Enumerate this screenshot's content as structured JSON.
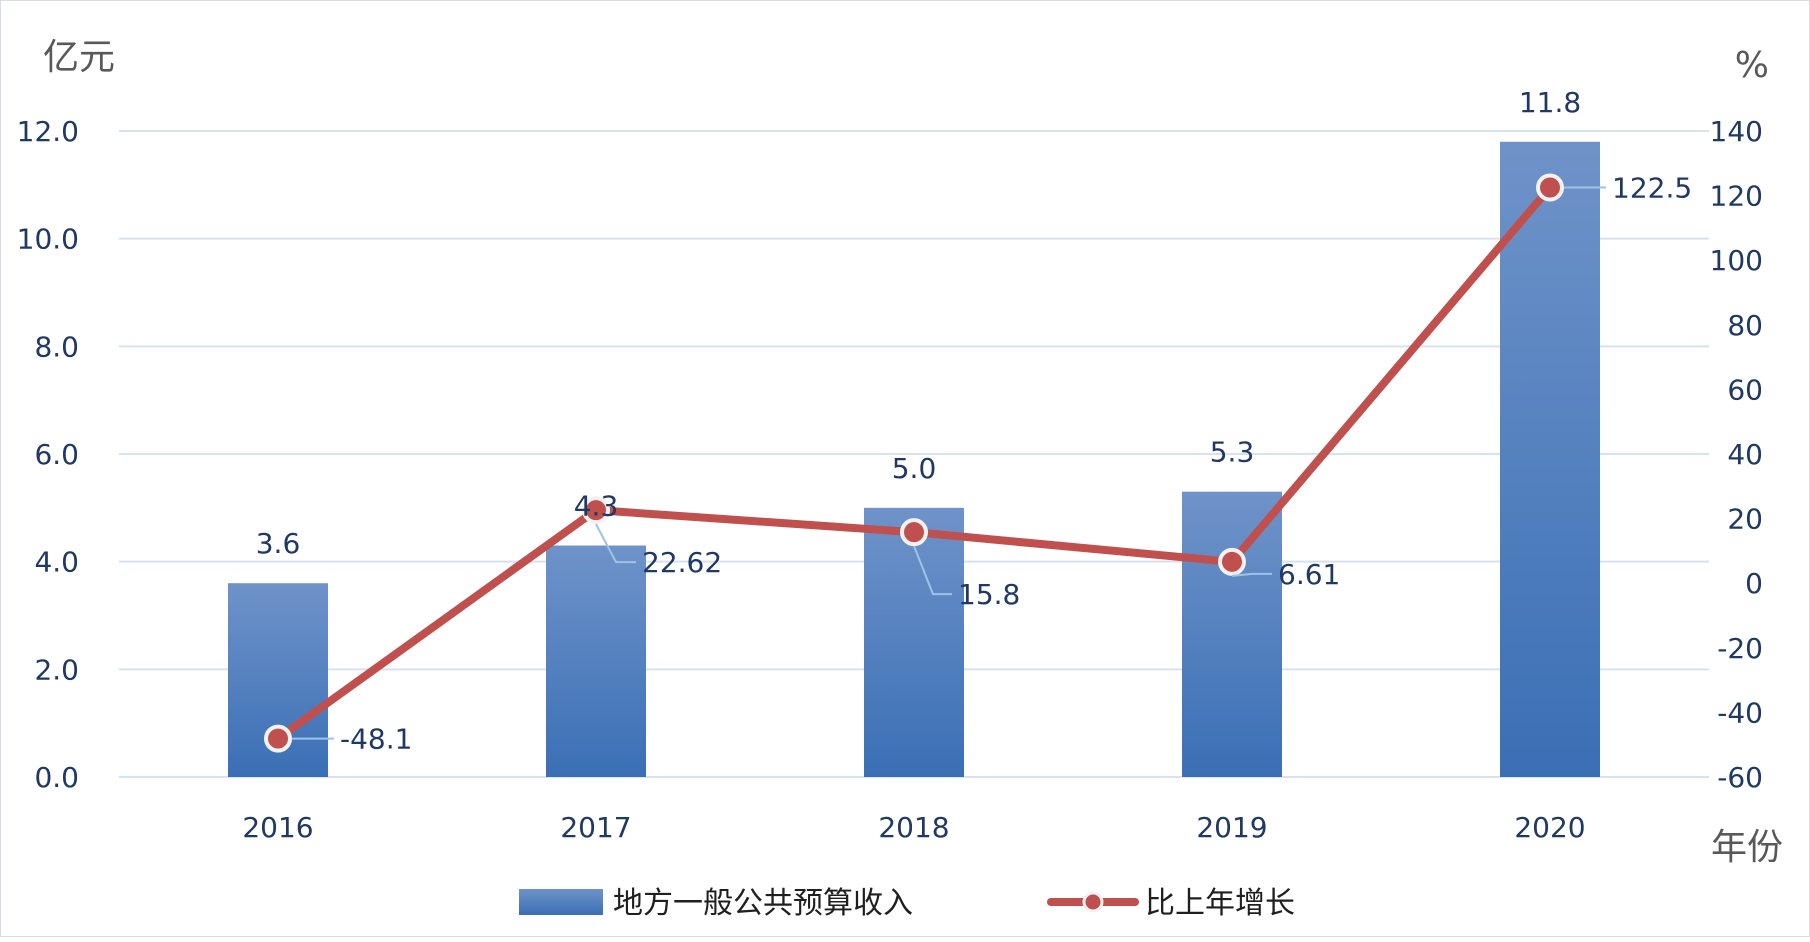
{
  "chart_data": {
    "type": "bar",
    "categories": [
      "2016",
      "2017",
      "2018",
      "2019",
      "2020"
    ],
    "series": [
      {
        "name": "地方一般公共预算收入",
        "type": "bar",
        "axis": "left",
        "values": [
          3.6,
          4.3,
          5.0,
          5.3,
          11.8
        ],
        "labels": [
          "3.6",
          "4.3",
          "5.0",
          "5.3",
          "11.8"
        ],
        "color": "#4a7ebb"
      },
      {
        "name": "比上年增长",
        "type": "line",
        "axis": "right",
        "values": [
          -48.1,
          22.62,
          15.8,
          6.61,
          122.5
        ],
        "labels": [
          "-48.1",
          "22.62",
          "15.8",
          "6.61",
          "122.5"
        ],
        "color": "#c0504d"
      }
    ],
    "left_axis": {
      "unit": "亿元",
      "ylim": [
        0,
        12
      ],
      "ticks": [
        "0.0",
        "2.0",
        "4.0",
        "6.0",
        "8.0",
        "10.0",
        "12.0"
      ]
    },
    "right_axis": {
      "unit": "%",
      "ylim": [
        -60,
        140
      ],
      "ticks": [
        "-60",
        "-40",
        "-20",
        "0",
        "20",
        "40",
        "60",
        "80",
        "100",
        "120",
        "140"
      ]
    },
    "x_axis_unit": "年份",
    "grid": true,
    "legend_position": "bottom"
  }
}
